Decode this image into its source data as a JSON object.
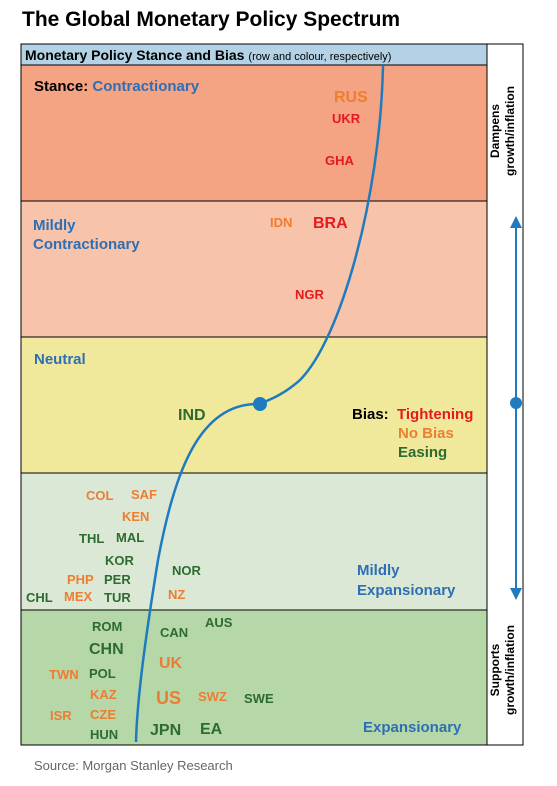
{
  "title": "The Global Monetary Policy Spectrum",
  "header": {
    "main": "Monetary Policy Stance and Bias",
    "note": "(row and colour, respectively)"
  },
  "colors": {
    "contractionary": "#f4a383",
    "mildly_contractionary": "#f8c3ab",
    "neutral": "#f0e89a",
    "mildly_expansionary": "#dbe8d5",
    "expansionary": "#b6d7a8",
    "tightening": "#e41a1c",
    "no_bias": "#ed7d31",
    "easing": "#2e6b30",
    "curve": "#1f7bbf",
    "header": "#b4d2e5",
    "label_blue": "#2e6fb4"
  },
  "stances": {
    "contractionary": {
      "prefix": "Stance: ",
      "label": "Contractionary"
    },
    "mildly_contractionary": {
      "line1": "Mildly",
      "line2": "Contractionary"
    },
    "neutral": {
      "label": "Neutral"
    },
    "mildly_expansionary": {
      "line1": "Mildly",
      "line2": "Expansionary"
    },
    "expansionary": {
      "label": "Expansionary"
    }
  },
  "bias_legend": {
    "title": "Bias: ",
    "tightening": "Tightening",
    "no_bias": "No Bias",
    "easing": "Easing"
  },
  "side_labels": {
    "top_line1": "Dampens",
    "top_line2": "growth/inflation",
    "bottom_line1": "Supports",
    "bottom_line2": "growth/inflation"
  },
  "countries": {
    "RUS": "RUS",
    "UKR": "UKR",
    "GHA": "GHA",
    "IDN": "IDN",
    "BRA": "BRA",
    "NGR": "NGR",
    "IND": "IND",
    "COL": "COL",
    "SAF": "SAF",
    "KEN": "KEN",
    "THL": "THL",
    "MAL": "MAL",
    "KOR": "KOR",
    "PHP": "PHP",
    "PER": "PER",
    "CHL": "CHL",
    "MEX": "MEX",
    "TUR": "TUR",
    "NOR": "NOR",
    "NZ": "NZ",
    "ROM": "ROM",
    "CAN": "CAN",
    "AUS": "AUS",
    "CHN": "CHN",
    "UK": "UK",
    "TWN": "TWN",
    "POL": "POL",
    "KAZ": "KAZ",
    "US": "US",
    "SWZ": "SWZ",
    "SWE": "SWE",
    "ISR": "ISR",
    "CZE": "CZE",
    "JPN": "JPN",
    "EA": "EA",
    "HUN": "HUN"
  },
  "source": "Source: Morgan Stanley Research"
}
